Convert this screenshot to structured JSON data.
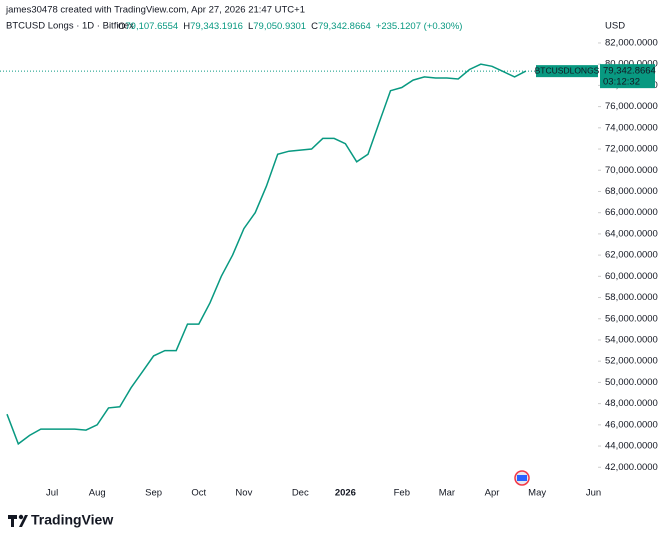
{
  "chart_data": {
    "type": "line",
    "credit": "james30478 created with TradingView.com, Apr 27, 2026 21:47 UTC+1",
    "title": "BTCUSD Longs · 1D · Bitfinex",
    "ohlc": [
      {
        "key": "O",
        "value": "79,107.6554"
      },
      {
        "key": "H",
        "value": "79,343.1916"
      },
      {
        "key": "L",
        "value": "79,050.9301"
      },
      {
        "key": "C",
        "value": "79,342.8664"
      }
    ],
    "change": "+235.1207 (+0.30%)",
    "currency": "USD",
    "price_tag": {
      "name": "BTCUSDLONGS",
      "value": 79342.8664,
      "label": "79,342.8664",
      "countdown": "03:12:32"
    },
    "brand": "TradingView",
    "categories": [
      null,
      null,
      null,
      null,
      "Jul",
      null,
      null,
      null,
      "Aug",
      null,
      null,
      null,
      null,
      "Sep",
      null,
      null,
      null,
      "Oct",
      null,
      null,
      null,
      "Nov",
      null,
      null,
      null,
      null,
      "Dec",
      null,
      null,
      null,
      "2026",
      null,
      null,
      null,
      null,
      "Feb",
      null,
      null,
      null,
      "Mar",
      null,
      null,
      null,
      "Apr",
      null,
      null,
      null,
      "May",
      null,
      null,
      null,
      null,
      "Jun"
    ],
    "series": [
      {
        "name": "BTCUSDLONGS",
        "color": "#089981",
        "values": [
          47000,
          44200,
          45000,
          45600,
          45600,
          45600,
          45600,
          45500,
          46000,
          47600,
          47700,
          49500,
          51000,
          52500,
          53000,
          53000,
          55500,
          55500,
          57500,
          60000,
          62000,
          64500,
          66000,
          68500,
          71500,
          71800,
          71900,
          72000,
          73000,
          73000,
          72500,
          70800,
          71500,
          74500,
          77500,
          77800,
          78500,
          78800,
          78700,
          78700,
          78600,
          79500,
          80000,
          79800,
          79300,
          78800,
          79342.8664,
          null,
          null,
          null,
          null,
          null,
          null
        ]
      }
    ],
    "ylim": [
      40800,
      82750
    ],
    "yticks": [
      {
        "value": 42000,
        "label": "42,000.0000"
      },
      {
        "value": 44000,
        "label": "44,000.0000"
      },
      {
        "value": 46000,
        "label": "46,000.0000"
      },
      {
        "value": 48000,
        "label": "48,000.0000"
      },
      {
        "value": 50000,
        "label": "50,000.0000"
      },
      {
        "value": 52000,
        "label": "52,000.0000"
      },
      {
        "value": 54000,
        "label": "54,000.0000"
      },
      {
        "value": 56000,
        "label": "56,000.0000"
      },
      {
        "value": 58000,
        "label": "58,000.0000"
      },
      {
        "value": 60000,
        "label": "60,000.0000"
      },
      {
        "value": 62000,
        "label": "62,000.0000"
      },
      {
        "value": 64000,
        "label": "64,000.0000"
      },
      {
        "value": 66000,
        "label": "66,000.0000"
      },
      {
        "value": 68000,
        "label": "68,000.0000"
      },
      {
        "value": 70000,
        "label": "70,000.0000"
      },
      {
        "value": 72000,
        "label": "72,000.0000"
      },
      {
        "value": 74000,
        "label": "74,000.0000"
      },
      {
        "value": 76000,
        "label": "76,000.0000"
      },
      {
        "value": 78000,
        "label": "78,000.0000"
      },
      {
        "value": 80000,
        "label": "80,000.0000"
      },
      {
        "value": 82000,
        "label": "82,000.0000"
      }
    ],
    "grid": false
  }
}
